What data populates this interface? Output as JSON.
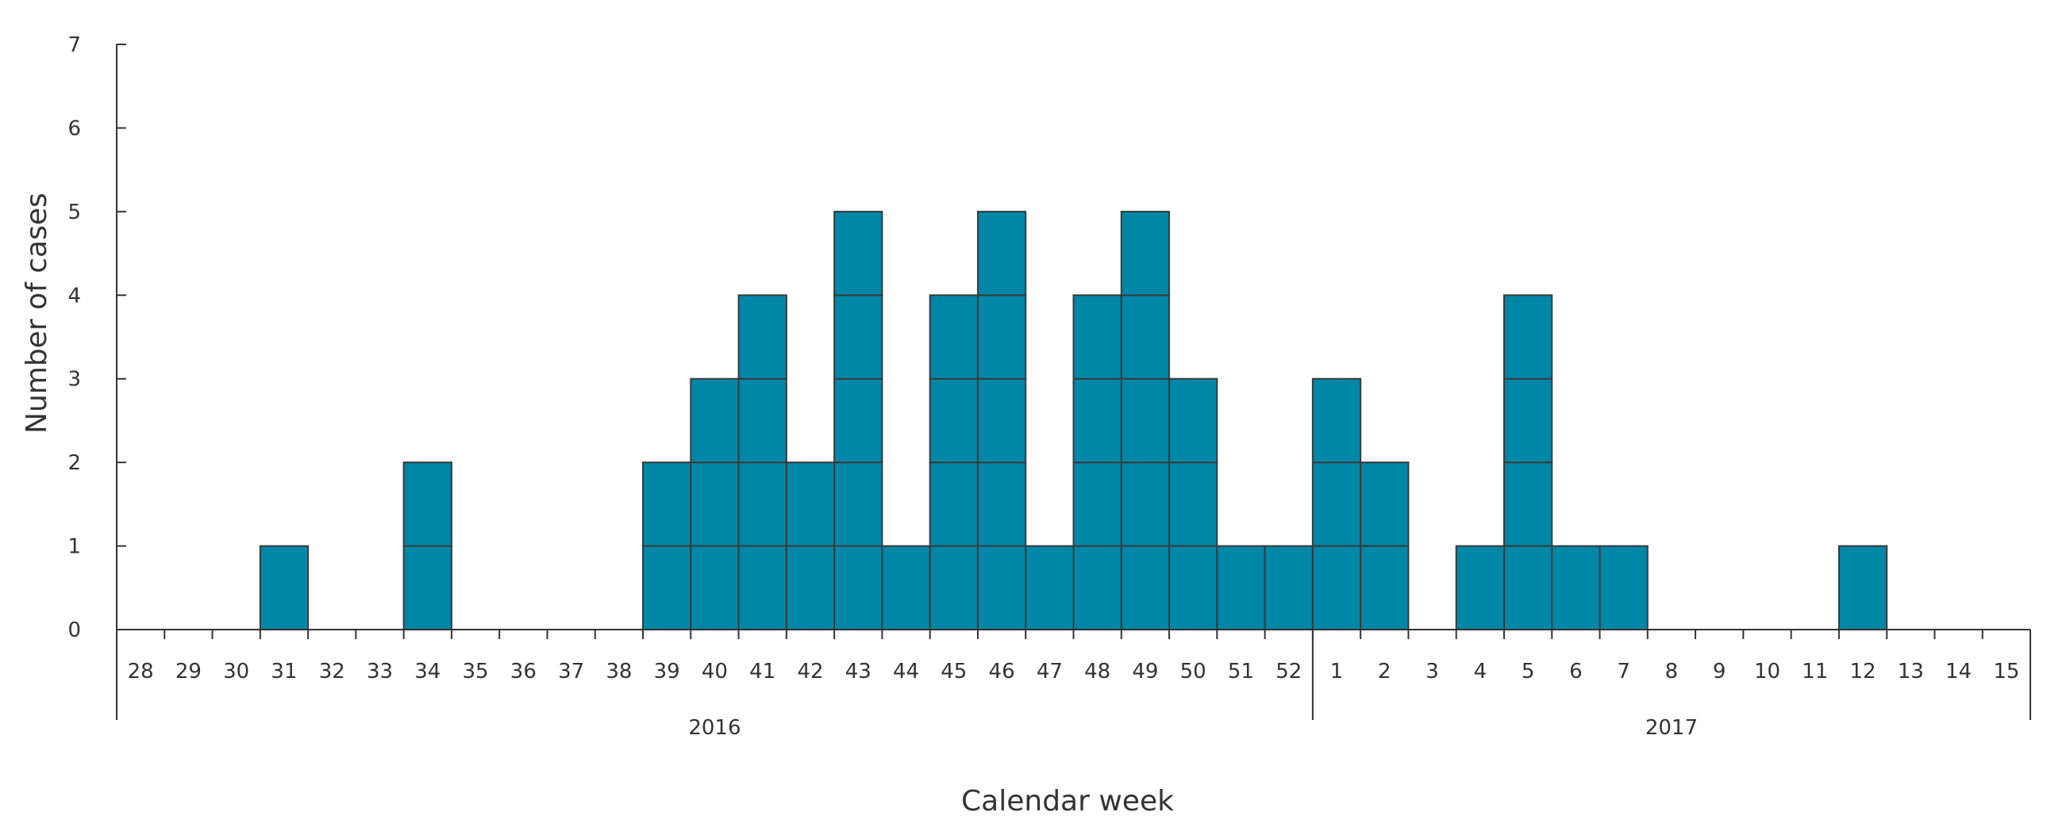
{
  "chart_data": {
    "type": "bar",
    "subtype": "epidemic-curve-stacked-unit-boxes",
    "title": "",
    "xlabel": "Calendar week",
    "ylabel": "Number of cases",
    "ylim": [
      0,
      7
    ],
    "yticks": [
      0,
      1,
      2,
      3,
      4,
      5,
      6,
      7
    ],
    "grid": false,
    "legend": "none",
    "bar_color": "#0087A8",
    "bar_edge_color": "#3a3a3a",
    "categories": [
      "28",
      "29",
      "30",
      "31",
      "32",
      "33",
      "34",
      "35",
      "36",
      "37",
      "38",
      "39",
      "40",
      "41",
      "42",
      "43",
      "44",
      "45",
      "46",
      "47",
      "48",
      "49",
      "50",
      "51",
      "52",
      "1",
      "2",
      "3",
      "4",
      "5",
      "6",
      "7",
      "8",
      "9",
      "10",
      "11",
      "12",
      "13",
      "14",
      "15"
    ],
    "values": [
      0,
      0,
      0,
      1,
      0,
      0,
      2,
      0,
      0,
      0,
      0,
      2,
      3,
      4,
      2,
      5,
      1,
      4,
      5,
      1,
      4,
      5,
      3,
      1,
      1,
      3,
      2,
      0,
      1,
      4,
      1,
      1,
      0,
      0,
      0,
      0,
      1,
      0,
      0,
      0
    ],
    "year_groups": [
      {
        "label": "2016",
        "first_week": "28",
        "last_week": "52"
      },
      {
        "label": "2017",
        "first_week": "1",
        "last_week": "15"
      }
    ]
  }
}
